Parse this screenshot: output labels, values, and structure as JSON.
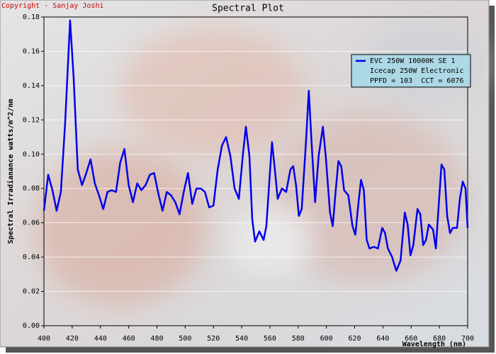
{
  "chart_data": {
    "type": "line",
    "title": "Spectral Plot",
    "copyright": "Copyright - Sanjay Joshi",
    "x_label": "Wavelength (nm)",
    "y_label": "Spectral Irradianance watts/m^2/nm",
    "xlim": [
      400,
      700
    ],
    "xticks": [
      400,
      420,
      440,
      460,
      480,
      500,
      520,
      540,
      560,
      580,
      600,
      620,
      640,
      660,
      680,
      700
    ],
    "ylim": [
      0,
      0.18
    ],
    "yticks": [
      {
        "value": 0,
        "label": "0.00"
      },
      {
        "value": 0.02,
        "label": "0.02"
      },
      {
        "value": 0.04,
        "label": "0.04"
      },
      {
        "value": 0.06,
        "label": "0.06"
      },
      {
        "value": 0.08,
        "label": "0.08"
      },
      {
        "value": 0.1,
        "label": "0.10"
      },
      {
        "value": 0.12,
        "label": "0.12"
      },
      {
        "value": 0.14,
        "label": "0.14"
      },
      {
        "value": 0.16,
        "label": "0.16"
      },
      {
        "value": 0.18,
        "label": "0.18"
      }
    ],
    "grid": true,
    "legend_position": "upper right",
    "legend_notes": [
      "Icecap 250W Electronic",
      "PPFD = 103  CCT = 6076"
    ],
    "x": [
      400,
      403,
      406,
      409,
      412,
      415,
      418.5,
      421,
      424,
      427,
      430,
      433,
      436,
      439,
      442,
      445,
      448,
      451,
      454,
      457,
      460,
      463,
      466,
      469,
      472,
      475,
      478,
      481,
      484,
      487,
      490,
      493,
      496,
      499,
      502,
      505,
      508,
      511,
      514,
      517,
      520,
      523,
      526,
      529,
      532,
      535,
      538,
      541,
      543,
      545.5,
      547.5,
      549.5,
      552.5,
      555.5,
      557.5,
      559.5,
      561.5,
      563.5,
      565.5,
      568.5,
      571.5,
      574.5,
      576.5,
      578.5,
      580.5,
      582.5,
      585.5,
      587.5,
      589.5,
      592,
      594.5,
      597.5,
      599.5,
      602.5,
      604.5,
      606.5,
      608.5,
      610.5,
      612.5,
      615.5,
      618.5,
      620.5,
      622.5,
      624.5,
      626.5,
      628.5,
      630.5,
      633.5,
      636.5,
      639.5,
      641.5,
      643.5,
      646.5,
      649.5,
      652.5,
      655.5,
      657.5,
      659.5,
      661.5,
      664.5,
      666.5,
      668.5,
      670.5,
      672.5,
      675.5,
      677.5,
      679.5,
      681.5,
      683.5,
      685.5,
      687.5,
      689.5,
      692.5,
      694.5,
      696.5,
      698.5,
      700
    ],
    "series": [
      {
        "name": "EVC 250W 10000K SE 1",
        "color": "#0000ee",
        "values": [
          0.067,
          0.088,
          0.079,
          0.067,
          0.078,
          0.118,
          0.178,
          0.145,
          0.091,
          0.082,
          0.089,
          0.097,
          0.083,
          0.076,
          0.068,
          0.078,
          0.079,
          0.078,
          0.095,
          0.103,
          0.082,
          0.072,
          0.083,
          0.079,
          0.082,
          0.088,
          0.089,
          0.077,
          0.067,
          0.078,
          0.076,
          0.072,
          0.065,
          0.078,
          0.089,
          0.071,
          0.08,
          0.08,
          0.078,
          0.069,
          0.07,
          0.091,
          0.105,
          0.11,
          0.099,
          0.08,
          0.074,
          0.101,
          0.116,
          0.099,
          0.062,
          0.049,
          0.055,
          0.05,
          0.058,
          0.083,
          0.107,
          0.091,
          0.074,
          0.08,
          0.078,
          0.091,
          0.093,
          0.082,
          0.064,
          0.068,
          0.107,
          0.137,
          0.107,
          0.072,
          0.099,
          0.116,
          0.099,
          0.066,
          0.058,
          0.078,
          0.096,
          0.093,
          0.079,
          0.076,
          0.058,
          0.053,
          0.07,
          0.085,
          0.079,
          0.05,
          0.045,
          0.046,
          0.045,
          0.057,
          0.054,
          0.045,
          0.04,
          0.032,
          0.038,
          0.066,
          0.059,
          0.041,
          0.047,
          0.068,
          0.065,
          0.047,
          0.05,
          0.059,
          0.056,
          0.045,
          0.07,
          0.094,
          0.091,
          0.064,
          0.054,
          0.057,
          0.057,
          0.074,
          0.084,
          0.08,
          0.057
        ]
      }
    ]
  }
}
